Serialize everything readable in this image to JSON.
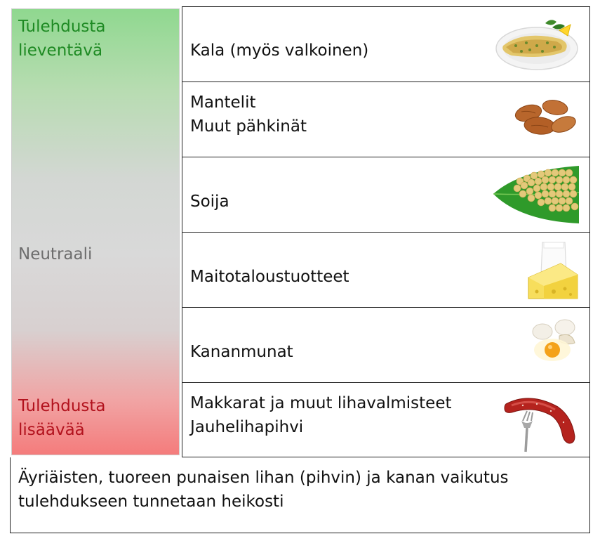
{
  "scale": {
    "top_label_line1": "Tulehdusta",
    "top_label_line2": "lieventävä",
    "middle_label": "Neutraali",
    "bottom_label_line1": "Tulehdusta",
    "bottom_label_line2": "lisäävää",
    "colors": {
      "anti_inflammatory": "#1e8a23",
      "neutral": "#6d6d6d",
      "pro_inflammatory": "#b2121d"
    }
  },
  "rows": [
    {
      "lines": [
        "Kala (myös valkoinen)"
      ],
      "icon": "fish-dish-icon"
    },
    {
      "lines": [
        "Mantelit",
        "Muut pähkinät"
      ],
      "icon": "almonds-icon"
    },
    {
      "lines": [
        "Soija"
      ],
      "icon": "soybeans-icon"
    },
    {
      "lines": [
        "Maitotaloustuotteet"
      ],
      "icon": "milk-cheese-icon"
    },
    {
      "lines": [
        "Kananmunat"
      ],
      "icon": "eggs-icon"
    },
    {
      "lines": [
        "Makkarat ja muut lihavalmisteet",
        "Jauhelihapihvi"
      ],
      "icon": "sausage-fork-icon"
    }
  ],
  "footer": {
    "line1": "Äyriäisten, tuoreen punaisen lihan (pihvin) ja kanan vaikutus",
    "line2": "tulehdukseen tunnetaan heikosti"
  }
}
